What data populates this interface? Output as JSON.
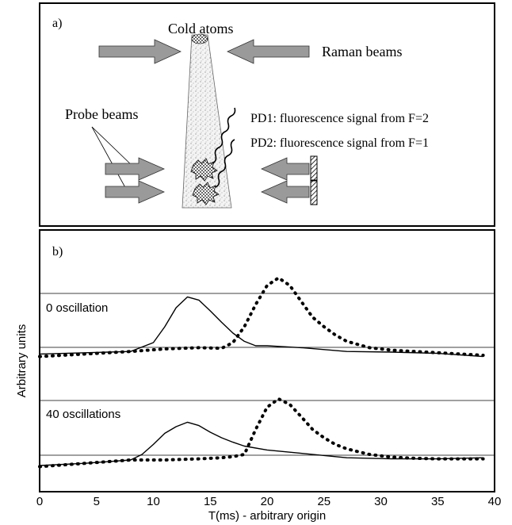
{
  "panel_a": {
    "label": "a)",
    "cold_atoms": "Cold atoms",
    "raman_beams": "Raman beams",
    "probe_beams": "Probe beams",
    "pd1": "PD1: fluorescence signal from F=2",
    "pd2": "PD2: fluorescence signal from F=1"
  },
  "panel_b": {
    "label": "b)",
    "trace_0_label": "0 oscillation",
    "trace_40_label": "40 oscillations"
  },
  "chart_data": {
    "type": "line",
    "xlabel": "T(ms) - arbitrary origin",
    "ylabel": "Arbitrary units",
    "xlim": [
      0,
      40
    ],
    "x_ticks": [
      "0",
      "5",
      "10",
      "15",
      "20",
      "25",
      "30",
      "35",
      "40"
    ],
    "panels": [
      {
        "annotation": "0 oscillation",
        "series": [
          {
            "style": "solid",
            "x": [
              0,
              4,
              8,
              10,
              11,
              12,
              13,
              14,
              15,
              16,
              17,
              18,
              19,
              20,
              23,
              27,
              31,
              35,
              39
            ],
            "y": [
              0.02,
              0.04,
              0.06,
              0.2,
              0.45,
              0.75,
              0.92,
              0.87,
              0.7,
              0.52,
              0.35,
              0.22,
              0.15,
              0.15,
              0.12,
              0.06,
              0.05,
              0.03,
              -0.02
            ]
          },
          {
            "style": "dotted",
            "x": [
              0,
              4,
              8,
              11,
              14,
              16,
              17,
              18,
              19,
              20,
              21,
              22,
              23,
              24,
              25,
              26,
              27,
              29,
              31,
              33,
              35,
              39
            ],
            "y": [
              -0.02,
              0.02,
              0.06,
              0.1,
              0.12,
              0.11,
              0.2,
              0.45,
              0.8,
              1.1,
              1.22,
              1.1,
              0.85,
              0.6,
              0.45,
              0.32,
              0.22,
              0.12,
              0.08,
              0.06,
              0.04,
              0.0
            ]
          }
        ]
      },
      {
        "annotation": "40 oscillations",
        "series": [
          {
            "style": "solid",
            "x": [
              0,
              4,
              8,
              9,
              10,
              11,
              12,
              13,
              14,
              15,
              16,
              17,
              18,
              20,
              23,
              27,
              31,
              35,
              39
            ],
            "y": [
              -0.1,
              -0.06,
              0.0,
              0.1,
              0.28,
              0.48,
              0.6,
              0.68,
              0.62,
              0.5,
              0.4,
              0.32,
              0.25,
              0.18,
              0.12,
              0.04,
              0.02,
              0.02,
              0.04
            ]
          },
          {
            "style": "dotted",
            "x": [
              0,
              4,
              8,
              11,
              14,
              16,
              17,
              18,
              19,
              20,
              21,
              22,
              23,
              24,
              25,
              26,
              27,
              29,
              31,
              33,
              35,
              39
            ],
            "y": [
              -0.12,
              -0.06,
              0.0,
              0.0,
              0.02,
              0.04,
              0.06,
              0.1,
              0.55,
              0.95,
              1.1,
              1.0,
              0.78,
              0.55,
              0.4,
              0.28,
              0.2,
              0.1,
              0.05,
              0.03,
              0.02,
              0.02
            ]
          }
        ]
      }
    ]
  }
}
